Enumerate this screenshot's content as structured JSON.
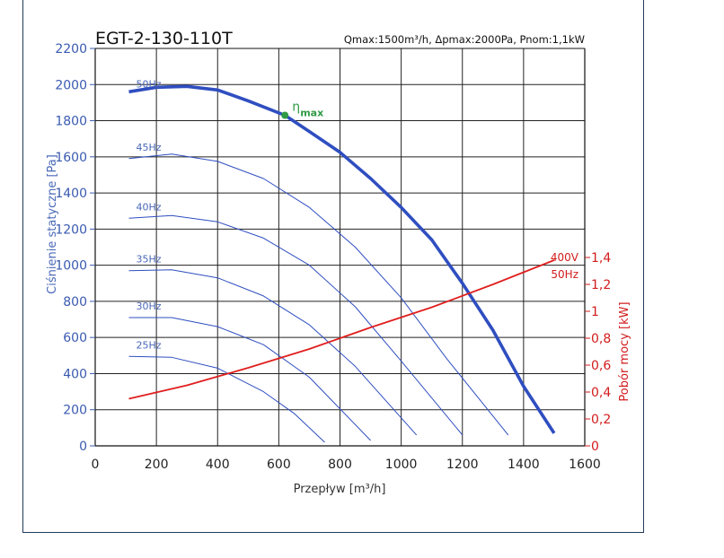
{
  "chart_data": {
    "type": "line",
    "title": "EGT-2-130-110T",
    "subtitle": "Qmax:1500m³/h, Δpmax:2000Pa, Pnom:1,1kW",
    "xlabel": "Przepływ [m³/h]",
    "ylabel": "Ciśnienie statyczne [Pa]",
    "ylabel_right": "Pobór mocy [kW]",
    "xlim": [
      0,
      1600
    ],
    "ylim": [
      0,
      2200
    ],
    "ylim_right": [
      0,
      1.4
    ],
    "x_ticks": [
      "0",
      "200",
      "400",
      "600",
      "800",
      "1000",
      "1200",
      "1400",
      "1600"
    ],
    "y_ticks": [
      "0",
      "200",
      "400",
      "600",
      "800",
      "1000",
      "1200",
      "1400",
      "1600",
      "1800",
      "2000",
      "2200"
    ],
    "y_right_ticks": [
      "0",
      "0,2",
      "0,4",
      "0,6",
      "0,8",
      "1",
      "1,2",
      "1,4"
    ],
    "grid": true,
    "pressure_series": [
      {
        "name": "50Hz",
        "color": "#2f4ec0",
        "bold": true,
        "points": [
          [
            110,
            1960
          ],
          [
            200,
            1985
          ],
          [
            300,
            1990
          ],
          [
            400,
            1970
          ],
          [
            500,
            1910
          ],
          [
            620,
            1830
          ],
          [
            700,
            1740
          ],
          [
            800,
            1625
          ],
          [
            900,
            1480
          ],
          [
            1000,
            1320
          ],
          [
            1100,
            1140
          ],
          [
            1200,
            900
          ],
          [
            1300,
            640
          ],
          [
            1400,
            330
          ],
          [
            1500,
            70
          ]
        ]
      },
      {
        "name": "45Hz",
        "color": "#2f4ec0",
        "bold": false,
        "points": [
          [
            110,
            1590
          ],
          [
            250,
            1615
          ],
          [
            400,
            1575
          ],
          [
            550,
            1480
          ],
          [
            700,
            1320
          ],
          [
            850,
            1100
          ],
          [
            1000,
            820
          ],
          [
            1150,
            480
          ],
          [
            1350,
            60
          ]
        ]
      },
      {
        "name": "40Hz",
        "color": "#2f4ec0",
        "bold": false,
        "points": [
          [
            110,
            1260
          ],
          [
            250,
            1275
          ],
          [
            400,
            1240
          ],
          [
            550,
            1150
          ],
          [
            700,
            1000
          ],
          [
            850,
            770
          ],
          [
            1000,
            470
          ],
          [
            1200,
            60
          ]
        ]
      },
      {
        "name": "35Hz",
        "color": "#2f4ec0",
        "bold": false,
        "points": [
          [
            110,
            970
          ],
          [
            250,
            975
          ],
          [
            400,
            930
          ],
          [
            550,
            830
          ],
          [
            700,
            670
          ],
          [
            850,
            440
          ],
          [
            1050,
            60
          ]
        ]
      },
      {
        "name": "30Hz",
        "color": "#2f4ec0",
        "bold": false,
        "points": [
          [
            110,
            710
          ],
          [
            250,
            710
          ],
          [
            400,
            660
          ],
          [
            550,
            560
          ],
          [
            700,
            380
          ],
          [
            900,
            30
          ]
        ]
      },
      {
        "name": "25Hz",
        "color": "#2f4ec0",
        "bold": false,
        "points": [
          [
            110,
            495
          ],
          [
            250,
            490
          ],
          [
            400,
            430
          ],
          [
            550,
            300
          ],
          [
            650,
            180
          ],
          [
            750,
            20
          ]
        ]
      }
    ],
    "power_series": {
      "name": "400V 50Hz",
      "label_line1": "400V",
      "label_line2": "50Hz",
      "color": "#e01e1e",
      "points": [
        [
          110,
          0.35
        ],
        [
          300,
          0.45
        ],
        [
          500,
          0.58
        ],
        [
          700,
          0.72
        ],
        [
          900,
          0.88
        ],
        [
          1100,
          1.03
        ],
        [
          1300,
          1.2
        ],
        [
          1500,
          1.38
        ]
      ]
    },
    "efficiency_point": {
      "label": "η",
      "subscript": "max",
      "x": 620,
      "y": 1830,
      "color": "#2e9a44"
    }
  }
}
